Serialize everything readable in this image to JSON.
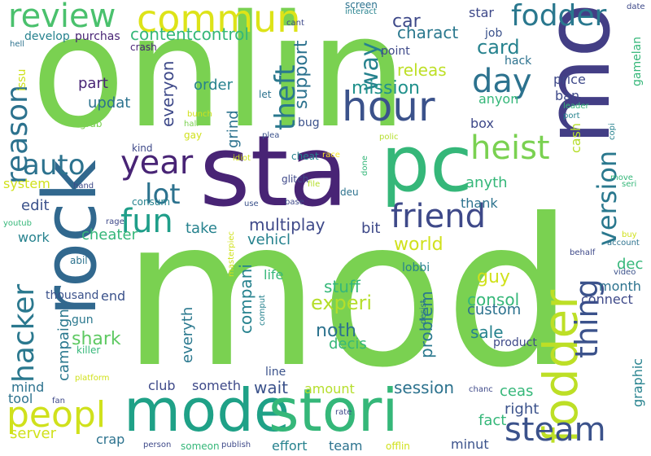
{
  "words": [
    {
      "text": "onlin",
      "color": "#7ad151",
      "rotate": false
    },
    {
      "text": "mod",
      "color": "#7ad151",
      "rotate": false
    },
    {
      "text": "sta",
      "color": "#482475",
      "rotate": false
    },
    {
      "text": "pc",
      "color": "#35b779",
      "rotate": false
    },
    {
      "text": "money",
      "color": "#433e85",
      "rotate": true
    },
    {
      "text": "rock",
      "color": "#31688e",
      "rotate": true
    },
    {
      "text": "mode",
      "color": "#1fa187",
      "rotate": false
    },
    {
      "text": "stori",
      "color": "#35b779",
      "rotate": false
    },
    {
      "text": "fodder",
      "color": "#bddf26",
      "rotate": true
    },
    {
      "text": "hour",
      "color": "#3b528b",
      "rotate": false
    },
    {
      "text": "commun",
      "color": "#dde318",
      "rotate": false
    },
    {
      "text": "friend",
      "color": "#3e4989",
      "rotate": false
    },
    {
      "text": "peopl",
      "color": "#d0e11c",
      "rotate": false
    },
    {
      "text": "review",
      "color": "#4ac16d",
      "rotate": false
    },
    {
      "text": "hacker",
      "color": "#2a788e",
      "rotate": true
    },
    {
      "text": "reason",
      "color": "#2c728e",
      "rotate": true
    },
    {
      "text": "steam",
      "color": "#3b528b",
      "rotate": false
    },
    {
      "text": "version",
      "color": "#2a788e",
      "rotate": true
    },
    {
      "text": "fodder",
      "color": "#2a788e",
      "rotate": false
    },
    {
      "text": "year",
      "color": "#482475",
      "rotate": false
    },
    {
      "text": "day",
      "color": "#2c728e",
      "rotate": false
    },
    {
      "text": "theft",
      "color": "#2a788e",
      "rotate": true
    },
    {
      "text": "heist",
      "color": "#7ad151",
      "rotate": false
    },
    {
      "text": "thing",
      "color": "#3b528b",
      "rotate": true
    },
    {
      "text": "auto",
      "color": "#2c728e",
      "rotate": false
    },
    {
      "text": "fun",
      "color": "#1f9e89",
      "rotate": false
    },
    {
      "text": "lot",
      "color": "#2c728e",
      "rotate": false
    },
    {
      "text": "way",
      "color": "#26828e",
      "rotate": true
    },
    {
      "text": "car",
      "color": "#3e4989",
      "rotate": false
    },
    {
      "text": "card",
      "color": "#26828e",
      "rotate": false
    },
    {
      "text": "charact",
      "color": "#2a788e",
      "rotate": false
    },
    {
      "text": "mission",
      "color": "#21918c",
      "rotate": false
    },
    {
      "text": "support",
      "color": "#2c728e",
      "rotate": true
    },
    {
      "text": "releas",
      "color": "#bddf26",
      "rotate": false
    },
    {
      "text": "contentcontrol",
      "color": "#35b779",
      "rotate": false
    },
    {
      "text": "multiplay",
      "color": "#3e4989",
      "rotate": false
    },
    {
      "text": "anyth",
      "color": "#35b779",
      "rotate": false
    },
    {
      "text": "world",
      "color": "#d0e11c",
      "rotate": false
    },
    {
      "text": "edit",
      "color": "#3b528b",
      "rotate": false
    },
    {
      "text": "work",
      "color": "#26828e",
      "rotate": false
    },
    {
      "text": "cheater",
      "color": "#35b779",
      "rotate": false
    },
    {
      "text": "take",
      "color": "#26828e",
      "rotate": false
    },
    {
      "text": "bit",
      "color": "#3e4989",
      "rotate": false
    },
    {
      "text": "vehicl",
      "color": "#26828e",
      "rotate": false
    },
    {
      "text": "experi",
      "color": "#b5de2b",
      "rotate": false
    },
    {
      "text": "guy",
      "color": "#d0e11c",
      "rotate": false
    },
    {
      "text": "stuff",
      "color": "#35b779",
      "rotate": false
    },
    {
      "text": "noth",
      "color": "#2c728e",
      "rotate": false
    },
    {
      "text": "sale",
      "color": "#26828e",
      "rotate": false
    },
    {
      "text": "problem",
      "color": "#2a788e",
      "rotate": true
    },
    {
      "text": "consol",
      "color": "#35b779",
      "rotate": false
    },
    {
      "text": "custom",
      "color": "#2c728e",
      "rotate": false
    },
    {
      "text": "month",
      "color": "#2c728e",
      "rotate": false
    },
    {
      "text": "connect",
      "color": "#3e4989",
      "rotate": false
    },
    {
      "text": "dec",
      "color": "#35b779",
      "rotate": false
    },
    {
      "text": "compani",
      "color": "#26828e",
      "rotate": true
    },
    {
      "text": "everyth",
      "color": "#2a788e",
      "rotate": true
    },
    {
      "text": "shark",
      "color": "#5ec962",
      "rotate": false
    },
    {
      "text": "campaign",
      "color": "#2a788e",
      "rotate": true
    },
    {
      "text": "session",
      "color": "#2c728e",
      "rotate": false
    },
    {
      "text": "decis",
      "color": "#35b779",
      "rotate": false
    },
    {
      "text": "ceas",
      "color": "#35b779",
      "rotate": false
    },
    {
      "text": "right",
      "color": "#3b528b",
      "rotate": false
    },
    {
      "text": "fact",
      "color": "#35b779",
      "rotate": false
    },
    {
      "text": "wait",
      "color": "#3b528b",
      "rotate": false
    },
    {
      "text": "amount",
      "color": "#b5de2b",
      "rotate": false
    },
    {
      "text": "club",
      "color": "#3e4989",
      "rotate": false
    },
    {
      "text": "someth",
      "color": "#3e4989",
      "rotate": false
    },
    {
      "text": "server",
      "color": "#d0e11c",
      "rotate": false
    },
    {
      "text": "minut",
      "color": "#3b528b",
      "rotate": false
    },
    {
      "text": "effort",
      "color": "#26828e",
      "rotate": false
    },
    {
      "text": "team",
      "color": "#2c728e",
      "rotate": false
    },
    {
      "text": "crap",
      "color": "#2c728e",
      "rotate": false
    },
    {
      "text": "mind",
      "color": "#2c728e",
      "rotate": false
    },
    {
      "text": "tool",
      "color": "#2c728e",
      "rotate": false
    },
    {
      "text": "updat",
      "color": "#2c728e",
      "rotate": false
    },
    {
      "text": "part",
      "color": "#482475",
      "rotate": false
    },
    {
      "text": "everyon",
      "color": "#3e4989",
      "rotate": true
    },
    {
      "text": "order",
      "color": "#26828e",
      "rotate": false
    },
    {
      "text": "grind",
      "color": "#2c728e",
      "rotate": true
    },
    {
      "text": "star",
      "color": "#3e4989",
      "rotate": false
    },
    {
      "text": "point",
      "color": "#3e4989",
      "rotate": false
    },
    {
      "text": "anyon",
      "color": "#35b779",
      "rotate": false
    },
    {
      "text": "price",
      "color": "#3e4989",
      "rotate": false
    },
    {
      "text": "ban",
      "color": "#3e4989",
      "rotate": false
    },
    {
      "text": "box",
      "color": "#3e4989",
      "rotate": false
    },
    {
      "text": "cash",
      "color": "#b5de2b",
      "rotate": true
    },
    {
      "text": "graphic",
      "color": "#26828e",
      "rotate": true
    },
    {
      "text": "thank",
      "color": "#2c728e",
      "rotate": false
    },
    {
      "text": "system",
      "color": "#d0e11c",
      "rotate": false
    },
    {
      "text": "life",
      "color": "#35b779",
      "rotate": false
    },
    {
      "text": "lobbi",
      "color": "#26828e",
      "rotate": false
    },
    {
      "text": "product",
      "color": "#3e4989",
      "rotate": false
    },
    {
      "text": "line",
      "color": "#3b528b",
      "rotate": false
    },
    {
      "text": "end",
      "color": "#3b528b",
      "rotate": false
    },
    {
      "text": "thousand",
      "color": "#3b528b",
      "rotate": false
    },
    {
      "text": "develop",
      "color": "#26828e",
      "rotate": false
    },
    {
      "text": "purchas",
      "color": "#482475",
      "rotate": false
    },
    {
      "text": "issu",
      "color": "#d0e11c",
      "rotate": true
    },
    {
      "text": "hack",
      "color": "#2c728e",
      "rotate": false
    },
    {
      "text": "job",
      "color": "#3b528b",
      "rotate": false
    },
    {
      "text": "gamelan",
      "color": "#35b779",
      "rotate": true
    },
    {
      "text": "screen",
      "color": "#2c728e",
      "rotate": false
    },
    {
      "text": "interact",
      "color": "#26828e",
      "rotate": false
    },
    {
      "text": "cant",
      "color": "#3e4989",
      "rotate": false
    },
    {
      "text": "crash",
      "color": "#482475",
      "rotate": false
    },
    {
      "text": "bug",
      "color": "#3b528b",
      "rotate": false
    },
    {
      "text": "let",
      "color": "#2c728e",
      "rotate": false
    },
    {
      "text": "plea",
      "color": "#3b528b",
      "rotate": false
    },
    {
      "text": "polic",
      "color": "#b5de2b",
      "rotate": false
    },
    {
      "text": "leader",
      "color": "#35b779",
      "rotate": false
    },
    {
      "text": "port",
      "color": "#26828e",
      "rotate": false
    },
    {
      "text": "kind",
      "color": "#3e4989",
      "rotate": false
    },
    {
      "text": "gay",
      "color": "#d0e11c",
      "rotate": false
    },
    {
      "text": "bunch",
      "color": "#d0e11c",
      "rotate": false
    },
    {
      "text": "half",
      "color": "#7ad151",
      "rotate": false
    },
    {
      "text": "grab",
      "color": "#7ad151",
      "rotate": false
    },
    {
      "text": "idiot",
      "color": "#d0e11c",
      "rotate": false
    },
    {
      "text": "cheat",
      "color": "#26828e",
      "rotate": false
    },
    {
      "text": "race",
      "color": "#fde725",
      "rotate": false
    },
    {
      "text": "copi",
      "color": "#26828e",
      "rotate": true
    },
    {
      "text": "glitch",
      "color": "#3e4989",
      "rotate": false
    },
    {
      "text": "file",
      "color": "#b5de2b",
      "rotate": false
    },
    {
      "text": "deu",
      "color": "#2c728e",
      "rotate": false
    },
    {
      "text": "move",
      "color": "#35b779",
      "rotate": false
    },
    {
      "text": "hand",
      "color": "#3e4989",
      "rotate": false
    },
    {
      "text": "consum",
      "color": "#26828e",
      "rotate": false
    },
    {
      "text": "base",
      "color": "#3e4989",
      "rotate": false
    },
    {
      "text": "done",
      "color": "#35b779",
      "rotate": true
    },
    {
      "text": "seri",
      "color": "#35b779",
      "rotate": false
    },
    {
      "text": "use",
      "color": "#3b528b",
      "rotate": false
    },
    {
      "text": "rage",
      "color": "#3e4989",
      "rotate": false
    },
    {
      "text": "youtub",
      "color": "#35b779",
      "rotate": false
    },
    {
      "text": "behalf",
      "color": "#3e4989",
      "rotate": false
    },
    {
      "text": "buy",
      "color": "#d0e11c",
      "rotate": false
    },
    {
      "text": "account",
      "color": "#2c728e",
      "rotate": false
    },
    {
      "text": "abil",
      "color": "#2c728e",
      "rotate": false
    },
    {
      "text": "video",
      "color": "#3b528b",
      "rotate": false
    },
    {
      "text": "masterpiec",
      "color": "#d0e11c",
      "rotate": true
    },
    {
      "text": "gun",
      "color": "#2a788e",
      "rotate": false
    },
    {
      "text": "comput",
      "color": "#26828e",
      "rotate": true
    },
    {
      "text": "desist",
      "color": "#2c728e",
      "rotate": true
    },
    {
      "text": "killer",
      "color": "#35b779",
      "rotate": false
    },
    {
      "text": "platform",
      "color": "#d0e11c",
      "rotate": false
    },
    {
      "text": "chanc",
      "color": "#3e4989",
      "rotate": false
    },
    {
      "text": "fan",
      "color": "#3e4989",
      "rotate": false
    },
    {
      "text": "rate",
      "color": "#3e4989",
      "rotate": false
    },
    {
      "text": "person",
      "color": "#3e4989",
      "rotate": false
    },
    {
      "text": "someon",
      "color": "#35b779",
      "rotate": false
    },
    {
      "text": "publish",
      "color": "#3e4989",
      "rotate": false
    },
    {
      "text": "offlin",
      "color": "#d0e11c",
      "rotate": false
    },
    {
      "text": "date",
      "color": "#3e4989",
      "rotate": false
    },
    {
      "text": "hell",
      "color": "#2c728e",
      "rotate": false
    }
  ]
}
